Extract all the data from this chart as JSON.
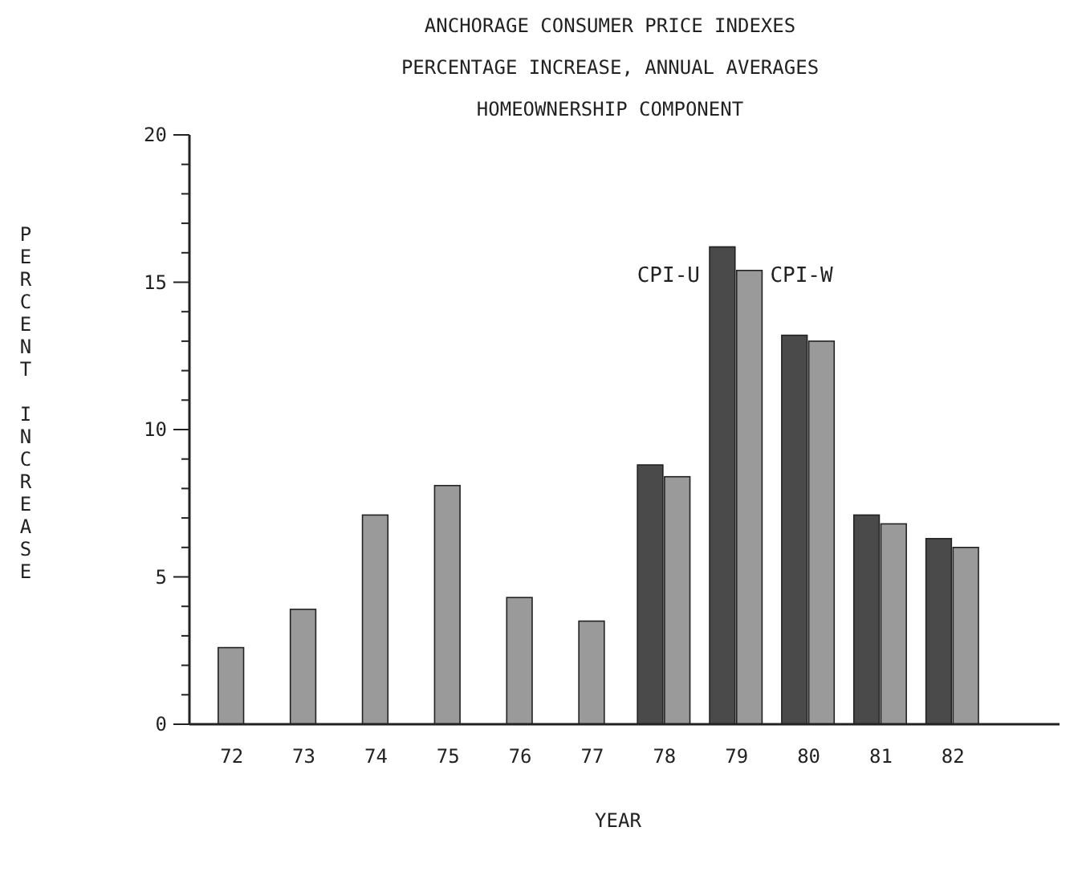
{
  "chart_data": {
    "type": "bar",
    "title": "ANCHORAGE CONSUMER PRICE INDEXES",
    "subtitle": "PERCENTAGE INCREASE, ANNUAL AVERAGES\nHOMEOWNERSHIP COMPONENT",
    "xlabel": "YEAR",
    "ylabel": "PERCENT INCREASE",
    "categories": [
      "72",
      "73",
      "74",
      "75",
      "76",
      "77",
      "78",
      "79",
      "80",
      "81",
      "82"
    ],
    "series": [
      {
        "name": "CPI-U",
        "color": "#4a4a4a",
        "values": [
          null,
          null,
          null,
          null,
          null,
          null,
          8.8,
          16.2,
          13.2,
          7.1,
          6.3
        ]
      },
      {
        "name": "CPI-W",
        "color": "#9a9a9a",
        "values": [
          2.6,
          3.9,
          7.1,
          8.1,
          4.3,
          3.5,
          8.4,
          15.4,
          13.0,
          6.8,
          6.0
        ]
      }
    ],
    "ylim": [
      0,
      20
    ],
    "yticks": [
      0,
      {
        "value": 1,
        "label": null
      },
      {
        "value": 2,
        "label": null
      },
      {
        "value": 3,
        "label": null
      },
      {
        "value": 4,
        "label": null
      },
      5,
      {
        "value": 6,
        "label": null
      },
      {
        "value": 7,
        "label": null
      },
      {
        "value": 8,
        "label": null
      },
      {
        "value": 9,
        "label": null
      },
      10,
      {
        "value": 11,
        "label": null
      },
      {
        "value": 12,
        "label": null
      },
      {
        "value": 13,
        "label": null
      },
      {
        "value": 14,
        "label": null
      },
      15,
      {
        "value": 16,
        "label": null
      },
      {
        "value": 17,
        "label": null
      },
      {
        "value": 18,
        "label": null
      },
      {
        "value": 19,
        "label": null
      },
      20
    ],
    "grid": false
  }
}
